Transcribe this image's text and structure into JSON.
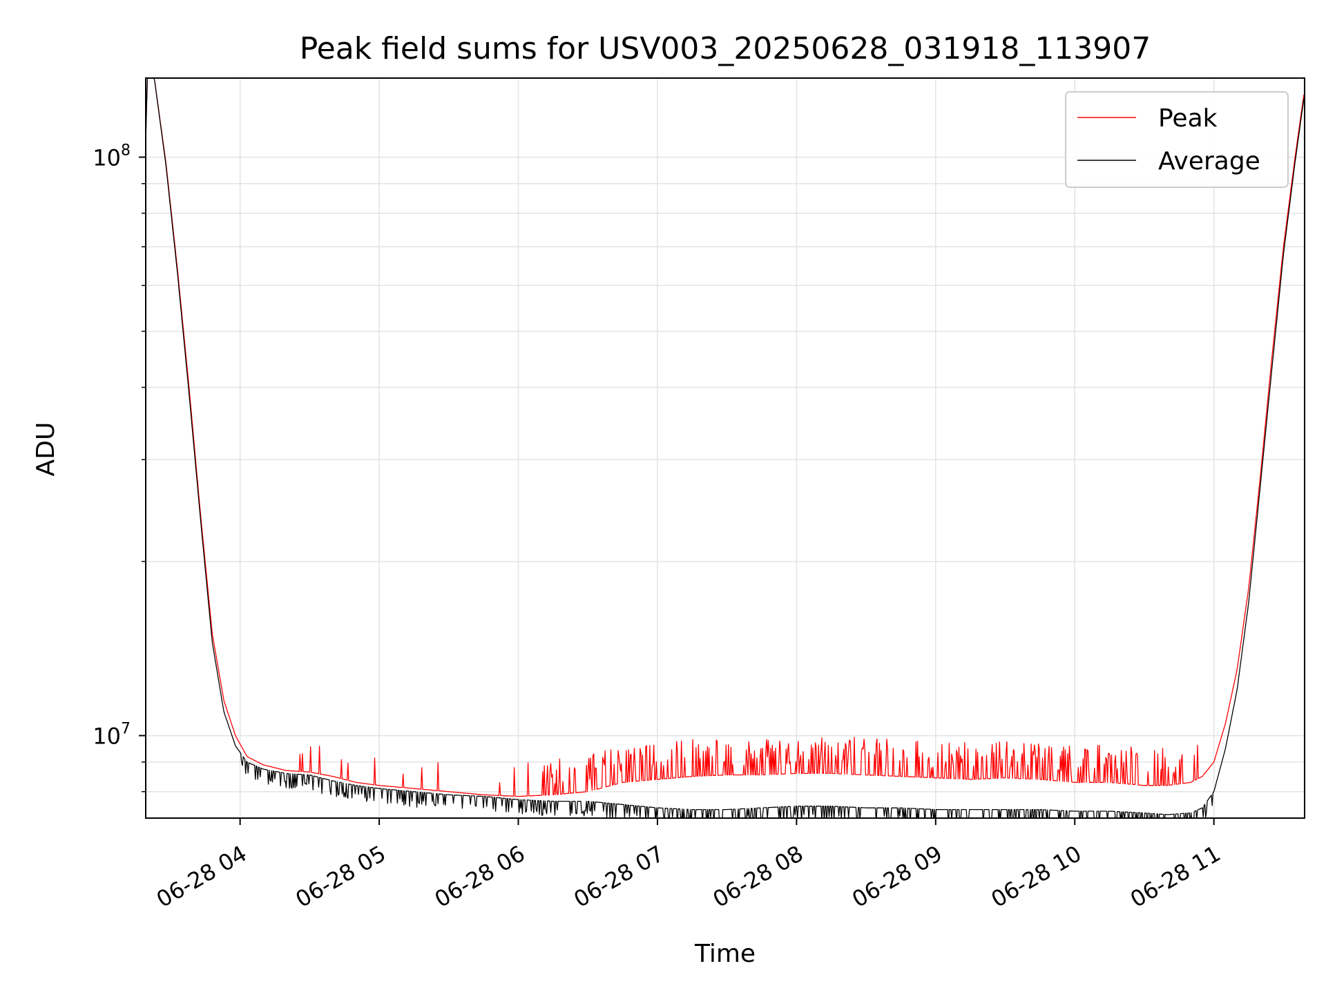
{
  "chart_data": {
    "type": "line",
    "title": "Peak field sums for USV003_20250628_031918_113907",
    "xlabel": "Time",
    "ylabel": "ADU",
    "x_range": [
      "2025-06-28 03:19:18",
      "2025-06-28 11:39:07"
    ],
    "ylim": [
      7200000,
      137000000
    ],
    "yscale": "log",
    "grid": true,
    "legend": {
      "position": "top-right",
      "entries": [
        "Peak",
        "Average"
      ]
    },
    "x_ticks": [
      "06-28 04",
      "06-28 05",
      "06-28 06",
      "06-28 07",
      "06-28 08",
      "06-28 09",
      "06-28 10",
      "06-28 11"
    ],
    "y_ticks": [
      {
        "value": 10000000,
        "base": "10",
        "exp": "7"
      },
      {
        "value": 100000000,
        "base": "10",
        "exp": "8"
      }
    ],
    "series": [
      {
        "name": "Peak",
        "color": "#ff0000",
        "x": [
          "03:19",
          "03:20",
          "03:23",
          "03:28",
          "03:33",
          "03:38",
          "03:43",
          "03:48",
          "03:53",
          "03:58",
          "04:03",
          "04:10",
          "04:20",
          "04:30",
          "04:40",
          "04:50",
          "05:00",
          "05:15",
          "05:30",
          "05:45",
          "06:00",
          "06:15",
          "06:30",
          "06:45",
          "07:00",
          "07:15",
          "07:30",
          "07:45",
          "08:00",
          "08:15",
          "08:30",
          "08:45",
          "09:00",
          "09:15",
          "09:30",
          "09:45",
          "10:00",
          "10:15",
          "10:30",
          "10:40",
          "10:50",
          "10:55",
          "11:00",
          "11:05",
          "11:10",
          "11:15",
          "11:20",
          "11:25",
          "11:30",
          "11:35",
          "11:39"
        ],
        "y": [
          97000000,
          137000000,
          137000000,
          98000000,
          64000000,
          40000000,
          24000000,
          15000000,
          11500000,
          10000000,
          9200000,
          8900000,
          8700000,
          8650000,
          8500000,
          8300000,
          8200000,
          8100000,
          8000000,
          7900000,
          7850000,
          7900000,
          8000000,
          8300000,
          8400000,
          8500000,
          8550000,
          8550000,
          8600000,
          8600000,
          8550000,
          8500000,
          8450000,
          8400000,
          8450000,
          8400000,
          8300000,
          8300000,
          8200000,
          8200000,
          8300000,
          8500000,
          9000000,
          10500000,
          13000000,
          18000000,
          28000000,
          45000000,
          70000000,
          100000000,
          130000000
        ]
      },
      {
        "name": "Average",
        "color": "#000000",
        "x": [
          "03:19",
          "03:20",
          "03:23",
          "03:28",
          "03:33",
          "03:38",
          "03:43",
          "03:48",
          "03:53",
          "03:58",
          "04:03",
          "04:10",
          "04:20",
          "04:30",
          "04:40",
          "04:50",
          "05:00",
          "05:15",
          "05:30",
          "05:45",
          "06:00",
          "06:15",
          "06:30",
          "06:45",
          "07:00",
          "07:15",
          "07:30",
          "07:45",
          "08:00",
          "08:15",
          "08:30",
          "08:45",
          "09:00",
          "09:15",
          "09:30",
          "09:45",
          "10:00",
          "10:15",
          "10:30",
          "10:40",
          "10:50",
          "10:55",
          "11:00",
          "11:05",
          "11:10",
          "11:15",
          "11:20",
          "11:25",
          "11:30",
          "11:35",
          "11:39"
        ],
        "y": [
          96000000,
          137000000,
          137000000,
          97000000,
          63000000,
          39000000,
          23500000,
          14500000,
          11000000,
          9600000,
          9000000,
          8750000,
          8600000,
          8550000,
          8350000,
          8200000,
          8100000,
          8000000,
          7900000,
          7850000,
          7750000,
          7700000,
          7700000,
          7600000,
          7500000,
          7450000,
          7450000,
          7500000,
          7550000,
          7550000,
          7500000,
          7500000,
          7450000,
          7450000,
          7450000,
          7450000,
          7400000,
          7400000,
          7350000,
          7300000,
          7350000,
          7500000,
          8000000,
          9500000,
          12000000,
          17000000,
          27000000,
          43000000,
          68000000,
          98000000,
          128000000
        ]
      }
    ]
  }
}
